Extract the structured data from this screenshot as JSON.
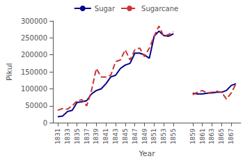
{
  "chart_data": {
    "type": "line",
    "xlabel": "Year",
    "ylabel": "Pikul",
    "x": [
      1831,
      1832,
      1833,
      1834,
      1835,
      1836,
      1837,
      1838,
      1839,
      1840,
      1841,
      1842,
      1843,
      1844,
      1845,
      1846,
      1847,
      1848,
      1849,
      1850,
      1851,
      1852,
      1853,
      1854,
      1855,
      1856,
      1857,
      1858,
      1859,
      1860,
      1861,
      1862,
      1863,
      1864,
      1865,
      1866,
      1867,
      1868
    ],
    "series": [
      {
        "name": "Sugar",
        "color": "#00008B",
        "line_style": "solid",
        "values": [
          18000,
          20000,
          33000,
          37000,
          60000,
          62000,
          65000,
          85000,
          95000,
          100000,
          115000,
          135000,
          140000,
          160000,
          170000,
          175000,
          205000,
          205000,
          200000,
          190000,
          255000,
          270000,
          257000,
          255000,
          262000,
          null,
          null,
          null,
          87000,
          85000,
          85000,
          87000,
          88000,
          90000,
          90000,
          95000,
          110000,
          115000
        ]
      },
      {
        "name": "Sugarcane",
        "color": "#CC3333",
        "line_style": "dashed",
        "values": [
          37000,
          42000,
          40000,
          50000,
          65000,
          68000,
          50000,
          95000,
          160000,
          135000,
          135000,
          140000,
          180000,
          185000,
          215000,
          185000,
          215000,
          220000,
          195000,
          220000,
          255000,
          285000,
          255000,
          260000,
          268000,
          null,
          null,
          null,
          83000,
          90000,
          95000,
          88000,
          90000,
          93000,
          90000,
          70000,
          88000,
          115000
        ]
      }
    ],
    "xlim": [
      1830,
      1869
    ],
    "xticks": [
      1831,
      1833,
      1835,
      1837,
      1839,
      1841,
      1843,
      1845,
      1847,
      1849,
      1851,
      1853,
      1855,
      1859,
      1861,
      1863,
      1865,
      1867
    ],
    "ylim": [
      0,
      300000
    ],
    "yticks": [
      0,
      50000,
      100000,
      150000,
      200000,
      250000,
      300000
    ],
    "grid": false,
    "legend": "top"
  }
}
